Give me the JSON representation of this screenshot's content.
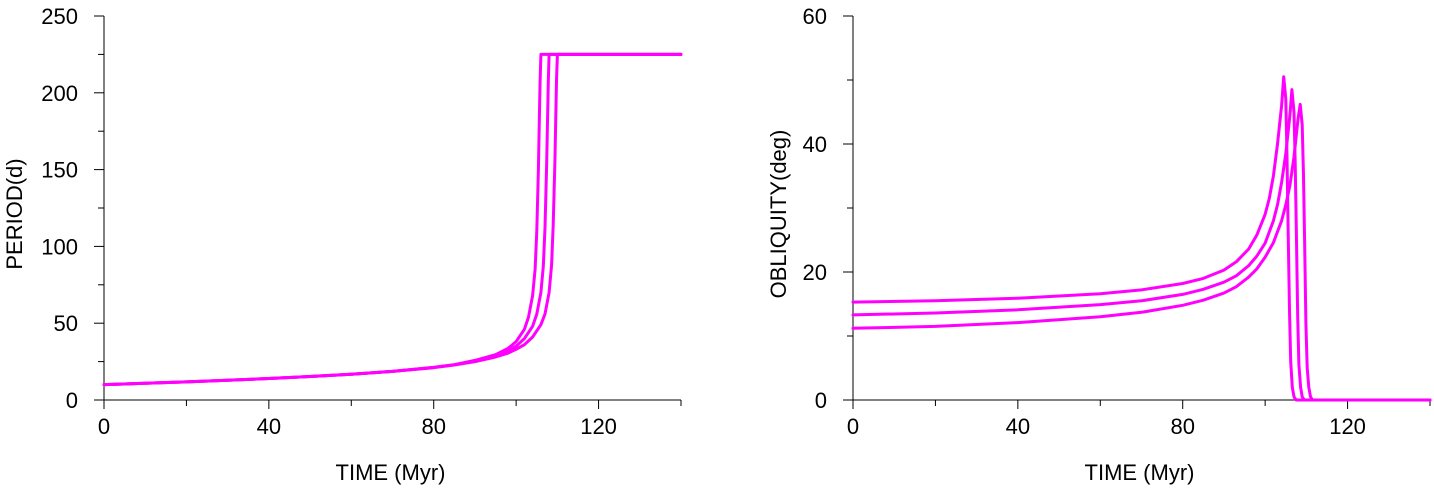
{
  "chart_data": [
    {
      "type": "line",
      "title": "",
      "xlabel": "TIME (Myr)",
      "ylabel": "PERIOD(d)",
      "xlim": [
        0,
        140
      ],
      "ylim": [
        0,
        250
      ],
      "x_ticks": [
        0,
        40,
        80,
        120
      ],
      "x_minor_ticks": [
        20,
        60,
        100,
        140
      ],
      "y_ticks": [
        0,
        50,
        100,
        150,
        200,
        250
      ],
      "y_minor_ticks": [
        25,
        75,
        125,
        175,
        225
      ],
      "line_color": "#ff00ff",
      "series": [
        {
          "x": [
            0,
            10,
            20,
            30,
            40,
            50,
            60,
            70,
            80,
            85,
            90,
            95,
            98,
            100,
            102,
            103,
            104,
            104.6,
            105,
            105.4,
            105.8,
            106,
            140
          ],
          "y": [
            10,
            10.9,
            11.8,
            12.8,
            14,
            15.3,
            16.8,
            18.6,
            21.2,
            23,
            25.8,
            29.5,
            33.5,
            38,
            46,
            54,
            68,
            85,
            110,
            150,
            205,
            225,
            225
          ]
        },
        {
          "x": [
            0,
            10,
            20,
            30,
            40,
            50,
            60,
            70,
            80,
            85,
            90,
            95,
            98,
            100,
            102,
            104,
            105,
            106,
            106.6,
            107,
            107.4,
            107.8,
            108,
            140
          ],
          "y": [
            10,
            10.9,
            11.8,
            12.8,
            14,
            15.3,
            16.8,
            18.6,
            21.2,
            23,
            25.5,
            29,
            32,
            35,
            40,
            48,
            56,
            70,
            87,
            112,
            152,
            207,
            225,
            225
          ]
        },
        {
          "x": [
            0,
            10,
            20,
            30,
            40,
            50,
            60,
            70,
            80,
            85,
            90,
            95,
            98,
            100,
            102,
            104,
            106,
            107,
            108,
            108.6,
            109,
            109.4,
            109.8,
            110,
            140
          ],
          "y": [
            10,
            10.9,
            11.8,
            12.8,
            14,
            15.3,
            16.8,
            18.6,
            21,
            22.8,
            25,
            28,
            30.5,
            33,
            36,
            41,
            49,
            56,
            70,
            88,
            114,
            155,
            208,
            225,
            225
          ]
        }
      ]
    },
    {
      "type": "line",
      "title": "",
      "xlabel": "TIME (Myr)",
      "ylabel": "OBLIQUITY(deg)",
      "xlim": [
        0,
        140
      ],
      "ylim": [
        0,
        60
      ],
      "x_ticks": [
        0,
        40,
        80,
        120
      ],
      "x_minor_ticks": [
        20,
        60,
        100,
        140
      ],
      "y_ticks": [
        0,
        20,
        40,
        60
      ],
      "y_minor_ticks": [
        10,
        30,
        50
      ],
      "line_color": "#ff00ff",
      "series": [
        {
          "x": [
            0,
            20,
            40,
            60,
            70,
            80,
            85,
            90,
            93,
            96,
            98,
            100,
            101,
            102,
            103,
            104,
            104.5,
            105,
            105.3,
            105.6,
            105.9,
            106.2,
            106.6,
            107,
            107.5,
            140
          ],
          "y": [
            15.3,
            15.5,
            15.9,
            16.6,
            17.2,
            18.2,
            19,
            20.3,
            21.6,
            23.6,
            25.8,
            29,
            31.5,
            35,
            40,
            46,
            50.5,
            47,
            38,
            26,
            14,
            6,
            2,
            0.5,
            0,
            0
          ]
        },
        {
          "x": [
            0,
            20,
            40,
            60,
            70,
            80,
            85,
            90,
            93,
            96,
            98,
            100,
            102,
            103,
            104,
            105,
            106,
            106.5,
            107,
            107.3,
            107.6,
            107.9,
            108.2,
            108.6,
            109,
            109.5,
            140
          ],
          "y": [
            13.3,
            13.6,
            14.1,
            14.9,
            15.5,
            16.5,
            17.3,
            18.4,
            19.4,
            21,
            22.5,
            24.5,
            28,
            30.5,
            34,
            38.5,
            44.5,
            48.5,
            45,
            37,
            25,
            13,
            5.5,
            2,
            0.5,
            0,
            0
          ]
        },
        {
          "x": [
            0,
            20,
            40,
            60,
            70,
            80,
            85,
            90,
            93,
            96,
            98,
            100,
            102,
            104,
            105,
            106,
            107,
            108,
            108.5,
            109,
            109.3,
            109.6,
            109.9,
            110.2,
            110.6,
            111,
            111.5,
            140
          ],
          "y": [
            11.2,
            11.5,
            12.1,
            13,
            13.7,
            14.8,
            15.6,
            16.7,
            17.7,
            19.2,
            20.5,
            22.3,
            24.6,
            28,
            30.5,
            33.5,
            38,
            44,
            46.2,
            43,
            35,
            24,
            12,
            5,
            2,
            0.5,
            0,
            0
          ]
        }
      ]
    }
  ]
}
